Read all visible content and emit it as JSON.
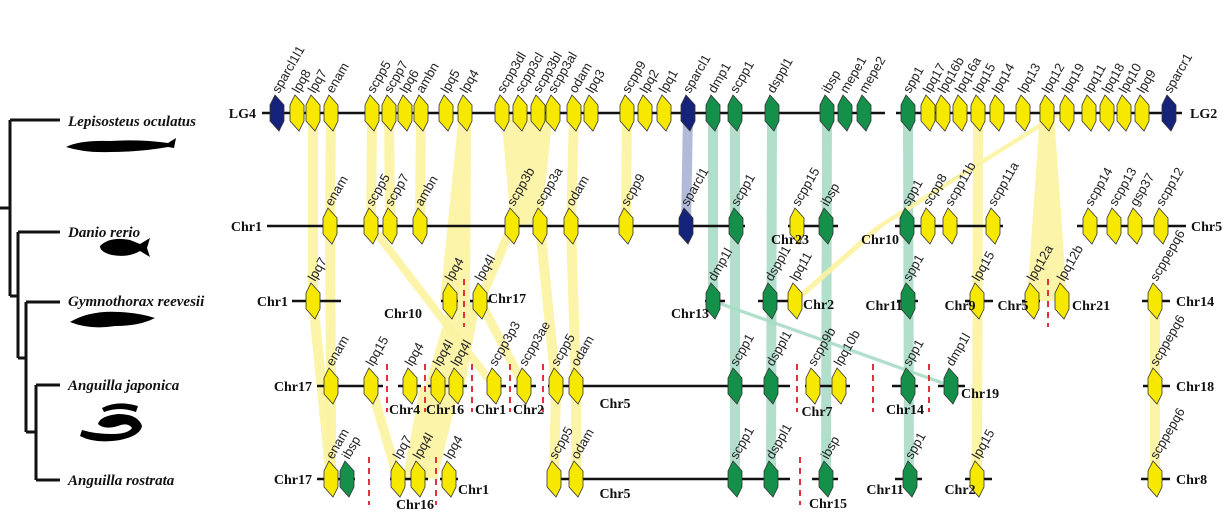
{
  "colors": {
    "scpp_yellow": "#f7e800",
    "noncollagen_green": "#14904a",
    "sparc_blue": "#16237a",
    "band_yellow": "#fbf3a0",
    "band_green": "#a9dcc6",
    "band_blue": "#aab2d6",
    "break_red": "#e3303c"
  },
  "species": [
    {
      "name": "Lepisosteus oculatus",
      "silhouette": "gar"
    },
    {
      "name": "Danio rerio",
      "silhouette": "zebrafish"
    },
    {
      "name": "Gymnothorax reevesii",
      "silhouette": "moray-eel"
    },
    {
      "name": "Anguilla japonica",
      "silhouette": "eel"
    },
    {
      "name": "Anguilla rostrata",
      "silhouette": "eel"
    }
  ],
  "rows": [
    {
      "chromosomes": [
        "LG4",
        "LG2"
      ],
      "genes": [
        [
          "sparcl1l1",
          "b"
        ],
        [
          "lpq8",
          "y"
        ],
        [
          "lpq7",
          "y"
        ],
        [
          "enam",
          "y"
        ],
        [
          "scpp5",
          "y"
        ],
        [
          "scpp7",
          "y"
        ],
        [
          "lpq6",
          "y"
        ],
        [
          "ambn",
          "y"
        ],
        [
          "lpq5",
          "y"
        ],
        [
          "lpq4",
          "y"
        ],
        [
          "scpp3dl",
          "y"
        ],
        [
          "scpp3cl",
          "y"
        ],
        [
          "scpp3bl",
          "y"
        ],
        [
          "scpp3al",
          "y"
        ],
        [
          "odam",
          "y"
        ],
        [
          "lpq3",
          "y"
        ],
        [
          "scpp9",
          "y"
        ],
        [
          "lpq2",
          "y"
        ],
        [
          "lpq1",
          "y"
        ],
        [
          "sparcl1",
          "b"
        ],
        [
          "dmp1",
          "g"
        ],
        [
          "scpp1",
          "g"
        ],
        [
          "dsppl1",
          "g"
        ],
        [
          "ibsp",
          "g"
        ],
        [
          "mepe1",
          "g"
        ],
        [
          "mepe2",
          "g"
        ],
        [
          "spp1",
          "g"
        ],
        [
          "lpq17",
          "y"
        ],
        [
          "lpq16b",
          "y"
        ],
        [
          "lpq16a",
          "y"
        ],
        [
          "lpq15",
          "y"
        ],
        [
          "lpq14",
          "y"
        ],
        [
          "lpq13",
          "y"
        ],
        [
          "lpq12",
          "y"
        ],
        [
          "lpq19",
          "y"
        ],
        [
          "lpq11",
          "y"
        ],
        [
          "lpq18",
          "y"
        ],
        [
          "lpq10",
          "y"
        ],
        [
          "lpq9",
          "y"
        ],
        [
          "sparcr1",
          "b"
        ]
      ]
    },
    {
      "chromosomes": [
        "Chr1",
        "Chr23",
        "Chr10",
        "Chr5"
      ],
      "genes": [
        [
          "enam",
          "y"
        ],
        [
          "scpp5",
          "y"
        ],
        [
          "scpp7",
          "y"
        ],
        [
          "ambn",
          "y"
        ],
        [
          "scpp3b",
          "y"
        ],
        [
          "scpp3a",
          "y"
        ],
        [
          "odam",
          "y"
        ],
        [
          "scpp9",
          "y"
        ],
        [
          "sparcl1",
          "b"
        ],
        [
          "scpp1",
          "g"
        ],
        [
          "scpp15",
          "y"
        ],
        [
          "ibsp",
          "g"
        ],
        [
          "spp1",
          "g"
        ],
        [
          "scpp8",
          "y"
        ],
        [
          "scpp11b",
          "y"
        ],
        [
          "scpp11a",
          "y"
        ],
        [
          "scpp14",
          "y"
        ],
        [
          "scpp13",
          "y"
        ],
        [
          "gsp37",
          "y"
        ],
        [
          "scpp12",
          "y"
        ]
      ]
    },
    {
      "chromosomes": [
        "Chr1",
        "Chr10",
        "Chr17",
        "Chr13",
        "Chr2",
        "Chr11",
        "Chr9",
        "Chr5",
        "Chr21",
        "Chr14"
      ],
      "genes": [
        [
          "lpq7",
          "y"
        ],
        [
          "lpq4",
          "y"
        ],
        [
          "lpq4l",
          "y"
        ],
        [
          "dmp1l",
          "g"
        ],
        [
          "dsppl1",
          "g"
        ],
        [
          "lpq11",
          "y"
        ],
        [
          "spp1",
          "g"
        ],
        [
          "lpq15",
          "y"
        ],
        [
          "lpq12a",
          "y"
        ],
        [
          "lpq12b",
          "y"
        ],
        [
          "scppepq6",
          "y"
        ]
      ]
    },
    {
      "chromosomes": [
        "Chr17",
        "Chr4",
        "Chr16",
        "Chr1",
        "Chr2",
        "Chr5",
        "Chr7",
        "Chr14",
        "Chr19",
        "Chr18"
      ],
      "genes": [
        [
          "enam",
          "y"
        ],
        [
          "lpq15",
          "y"
        ],
        [
          "lpq4",
          "y"
        ],
        [
          "lpq4l",
          "y"
        ],
        [
          "lpq4l",
          "y"
        ],
        [
          "scpp3p3",
          "y"
        ],
        [
          "scpp3ae",
          "y"
        ],
        [
          "scpp5",
          "y"
        ],
        [
          "odam",
          "y"
        ],
        [
          "scpp1",
          "g"
        ],
        [
          "dsppl1",
          "g"
        ],
        [
          "scpp9b",
          "y"
        ],
        [
          "lpq10b",
          "y"
        ],
        [
          "spp1",
          "g"
        ],
        [
          "dmp1l",
          "g"
        ],
        [
          "scppepq6",
          "y"
        ]
      ]
    },
    {
      "chromosomes": [
        "Chr17",
        "Chr16",
        "Chr1",
        "Chr5",
        "Chr15",
        "Chr11",
        "Chr2",
        "Chr8"
      ],
      "genes": [
        [
          "enam",
          "y"
        ],
        [
          "ibsp",
          "g"
        ],
        [
          "lpq7",
          "y"
        ],
        [
          "lpq4l",
          "y"
        ],
        [
          "lpq4",
          "y"
        ],
        [
          "scpp5",
          "y"
        ],
        [
          "odam",
          "y"
        ],
        [
          "scpp1",
          "g"
        ],
        [
          "dsppl1",
          "g"
        ],
        [
          "ibsp",
          "g"
        ],
        [
          "spp1",
          "g"
        ],
        [
          "lpq15",
          "y"
        ],
        [
          "scppepq6",
          "y"
        ]
      ]
    }
  ]
}
